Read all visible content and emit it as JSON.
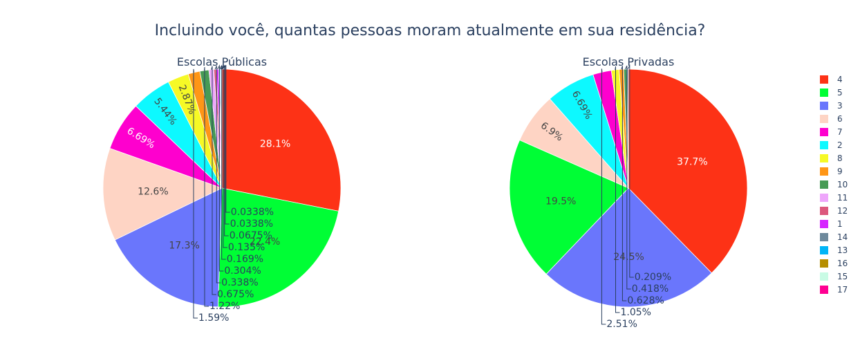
{
  "title": "Incluindo você, quantas pessoas moram atualmente em sua residência?",
  "legend": {
    "placement": "right",
    "items": [
      {
        "label": "4",
        "color": "#FD3216"
      },
      {
        "label": "5",
        "color": "#00FE35"
      },
      {
        "label": "3",
        "color": "#6A76FC"
      },
      {
        "label": "6",
        "color": "#FED4C4"
      },
      {
        "label": "7",
        "color": "#FE00CE"
      },
      {
        "label": "2",
        "color": "#0DF9FF"
      },
      {
        "label": "8",
        "color": "#F6F926"
      },
      {
        "label": "9",
        "color": "#FF9616"
      },
      {
        "label": "10",
        "color": "#479B55"
      },
      {
        "label": "11",
        "color": "#EEA6FB"
      },
      {
        "label": "12",
        "color": "#DC587D"
      },
      {
        "label": "1",
        "color": "#D626FF"
      },
      {
        "label": "14",
        "color": "#6E899C"
      },
      {
        "label": "13",
        "color": "#00B5F7"
      },
      {
        "label": "16",
        "color": "#B68E00"
      },
      {
        "label": "15",
        "color": "#C9FBE5"
      },
      {
        "label": "17",
        "color": "#FF0092"
      }
    ]
  },
  "chart_data": [
    {
      "type": "pie",
      "title": "Escolas Públicas",
      "slices": [
        {
          "label": "4",
          "value": 28.1,
          "text": "28.1%"
        },
        {
          "label": "5",
          "value": 22.4,
          "text": "22.4%"
        },
        {
          "label": "3",
          "value": 17.3,
          "text": "17.3%"
        },
        {
          "label": "6",
          "value": 12.6,
          "text": "12.6%"
        },
        {
          "label": "7",
          "value": 6.69,
          "text": "6.69%"
        },
        {
          "label": "2",
          "value": 5.44,
          "text": "5.44%"
        },
        {
          "label": "8",
          "value": 2.87,
          "text": "2.87%"
        },
        {
          "label": "9",
          "value": 1.59,
          "text": "1.59%"
        },
        {
          "label": "10",
          "value": 1.22,
          "text": "1.22%"
        },
        {
          "label": "11",
          "value": 0.675,
          "text": "0.675%"
        },
        {
          "label": "12",
          "value": 0.338,
          "text": "0.338%"
        },
        {
          "label": "1",
          "value": 0.304,
          "text": "0.304%"
        },
        {
          "label": "14",
          "value": 0.169,
          "text": "0.169%"
        },
        {
          "label": "13",
          "value": 0.135,
          "text": "0.135%"
        },
        {
          "label": "16",
          "value": 0.0675,
          "text": "0.0675%"
        },
        {
          "label": "15",
          "value": 0.0338,
          "text": "0.0338%"
        },
        {
          "label": "17",
          "value": 0.0338,
          "text": "0.0338%"
        }
      ]
    },
    {
      "type": "pie",
      "title": "Escolas Privadas",
      "slices": [
        {
          "label": "4",
          "value": 37.7,
          "text": "37.7%"
        },
        {
          "label": "3",
          "value": 24.5,
          "text": "24.5%"
        },
        {
          "label": "5",
          "value": 19.5,
          "text": "19.5%"
        },
        {
          "label": "6",
          "value": 6.9,
          "text": "6.9%"
        },
        {
          "label": "2",
          "value": 6.69,
          "text": "6.69%"
        },
        {
          "label": "7",
          "value": 2.51,
          "text": "2.51%"
        },
        {
          "label": "8",
          "value": 1.05,
          "text": "1.05%"
        },
        {
          "label": "9",
          "value": 0.628,
          "text": "0.628%"
        },
        {
          "label": "10",
          "value": 0.418,
          "text": "0.418%"
        },
        {
          "label": "14",
          "value": 0.209,
          "text": "0.209%"
        }
      ]
    }
  ]
}
